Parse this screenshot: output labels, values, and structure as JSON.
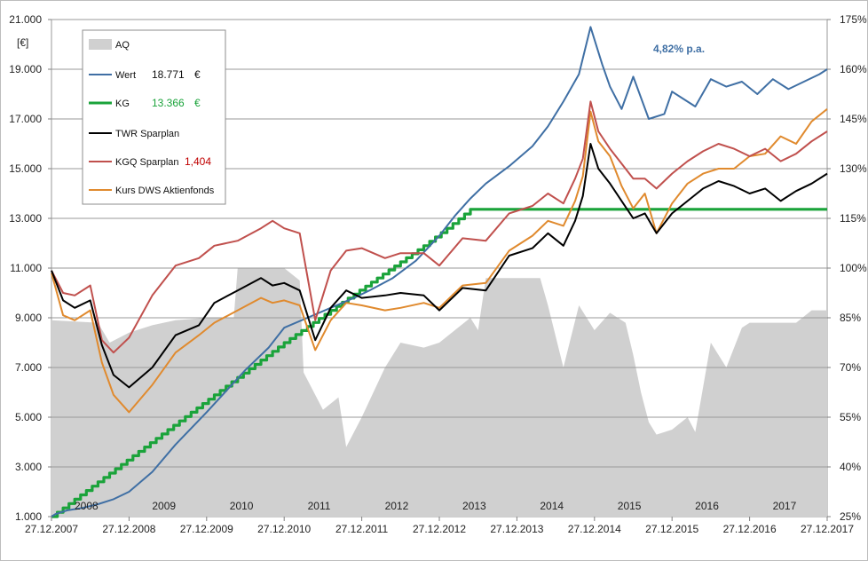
{
  "chart_data": {
    "type": "line",
    "y_unit_label": "[€]",
    "y_left_ticks": [
      "1.000",
      "3.000",
      "5.000",
      "7.000",
      "9.000",
      "11.000",
      "13.000",
      "15.000",
      "17.000",
      "19.000",
      "21.000"
    ],
    "y_left_values": [
      1000,
      3000,
      5000,
      7000,
      9000,
      11000,
      13000,
      15000,
      17000,
      19000,
      21000
    ],
    "ylim_left": [
      1000,
      21000
    ],
    "y_right_ticks": [
      "25%",
      "40%",
      "55%",
      "70%",
      "85%",
      "100%",
      "115%",
      "130%",
      "145%",
      "160%",
      "175%"
    ],
    "ylim_right": [
      25,
      175
    ],
    "x_date_ticks": [
      "27.12.2007",
      "27.12.2008",
      "27.12.2009",
      "27.12.2010",
      "27.12.2011",
      "27.12.2012",
      "27.12.2013",
      "27.12.2014",
      "27.12.2015",
      "27.12.2016",
      "27.12.2017"
    ],
    "year_labels": [
      "2008",
      "2009",
      "2010",
      "2011",
      "2012",
      "2013",
      "2014",
      "2015",
      "2016",
      "2017"
    ],
    "xlim": [
      2008.0,
      2018.0
    ],
    "annotation": "4,82%   p.a.",
    "legend": [
      {
        "key": "aq",
        "label": "AQ",
        "value": "",
        "unit": ""
      },
      {
        "key": "wert",
        "label": "Wert",
        "value": "18.771",
        "unit": "€"
      },
      {
        "key": "kg",
        "label": "KG",
        "value": "13.366",
        "unit": "€"
      },
      {
        "key": "twr",
        "label": "TWR Sparplan",
        "value": "",
        "unit": ""
      },
      {
        "key": "kgq",
        "label": "KGQ Sparplan",
        "value": "1,404",
        "unit": ""
      },
      {
        "key": "kurs",
        "label": "Kurs DWS Aktienfonds",
        "value": "",
        "unit": ""
      }
    ],
    "colors": {
      "aq": "#d0d0d0",
      "wert": "#3f6fa4",
      "kg": "#1aa33a",
      "twr": "#000000",
      "kgq": "#c0504d",
      "kurs": "#e08a2e"
    },
    "series": {
      "aq": {
        "x": [
          2008.0,
          2008.6,
          2008.75,
          2009.0,
          2009.3,
          2009.6,
          2010.0,
          2010.35,
          2010.4,
          2011.0,
          2011.2,
          2011.25,
          2011.5,
          2011.7,
          2011.8,
          2012.0,
          2012.3,
          2012.5,
          2012.8,
          2013.0,
          2013.2,
          2013.4,
          2013.5,
          2013.6,
          2014.0,
          2014.3,
          2014.4,
          2014.6,
          2014.8,
          2015.0,
          2015.2,
          2015.4,
          2015.5,
          2015.6,
          2015.7,
          2015.8,
          2016.0,
          2016.2,
          2016.3,
          2016.5,
          2016.7,
          2016.9,
          2017.0,
          2017.3,
          2017.6,
          2017.8,
          2018.0
        ],
        "y": [
          8900,
          8800,
          8000,
          8400,
          8700,
          8900,
          9000,
          9000,
          11000,
          11000,
          10500,
          6800,
          5300,
          5800,
          3800,
          5000,
          7000,
          8000,
          7800,
          8000,
          8500,
          9000,
          8500,
          10600,
          10600,
          10600,
          9500,
          7000,
          9500,
          8500,
          9200,
          8800,
          7500,
          6000,
          4800,
          4300,
          4500,
          5000,
          4400,
          8000,
          7000,
          8600,
          8800,
          8800,
          8800,
          9300,
          9300
        ]
      },
      "wert": {
        "x": [
          2008.0,
          2008.05,
          2008.2,
          2008.4,
          2008.6,
          2008.8,
          2009.0,
          2009.3,
          2009.6,
          2010.0,
          2010.5,
          2010.8,
          2011.0,
          2011.3,
          2011.6,
          2011.9,
          2012.1,
          2012.4,
          2012.7,
          2013.0,
          2013.2,
          2013.4,
          2013.6,
          2013.9,
          2014.2,
          2014.4,
          2014.6,
          2014.8,
          2014.95,
          2015.1,
          2015.2,
          2015.35,
          2015.5,
          2015.7,
          2015.9,
          2016.0,
          2016.15,
          2016.3,
          2016.5,
          2016.7,
          2016.9,
          2017.1,
          2017.3,
          2017.5,
          2017.7,
          2017.9,
          2018.0
        ],
        "y": [
          1000,
          1100,
          1250,
          1350,
          1500,
          1700,
          2000,
          2800,
          3900,
          5200,
          6900,
          7800,
          8600,
          9000,
          9400,
          9800,
          10100,
          10600,
          11300,
          12300,
          13100,
          13800,
          14400,
          15100,
          15900,
          16700,
          17700,
          18800,
          20700,
          19200,
          18300,
          17400,
          18700,
          17000,
          17200,
          18100,
          17800,
          17500,
          18600,
          18300,
          18500,
          18000,
          18600,
          18200,
          18500,
          18800,
          19000
        ]
      },
      "kg": {
        "x": [
          2008.0,
          2008.3,
          2008.6,
          2008.9,
          2009.2,
          2009.5,
          2009.8,
          2010.1,
          2010.4,
          2010.7,
          2011.0,
          2011.3,
          2011.6,
          2011.9,
          2012.2,
          2012.5,
          2012.8,
          2013.1,
          2013.4,
          2013.7,
          2014.0,
          2014.3,
          2014.6,
          2014.9,
          2015.2,
          2015.5,
          2015.8,
          2016.0,
          2016.5,
          2017.0,
          2017.5,
          2018.0
        ],
        "y": [
          1000,
          1700,
          2400,
          3100,
          3800,
          4500,
          5200,
          5900,
          6600,
          7300,
          8000,
          8650,
          9300,
          9950,
          10600,
          11250,
          11900,
          12600,
          13366,
          13366,
          13366,
          13366,
          13366,
          13366,
          13366,
          13366,
          13366,
          13366,
          13366,
          13366,
          13366,
          13366
        ]
      },
      "twr": {
        "x": [
          2008.0,
          2008.15,
          2008.3,
          2008.5,
          2008.65,
          2008.8,
          2009.0,
          2009.3,
          2009.6,
          2009.9,
          2010.1,
          2010.4,
          2010.7,
          2010.85,
          2011.0,
          2011.2,
          2011.4,
          2011.6,
          2011.8,
          2012.0,
          2012.3,
          2012.5,
          2012.8,
          2013.0,
          2013.3,
          2013.6,
          2013.9,
          2014.2,
          2014.4,
          2014.6,
          2014.75,
          2014.85,
          2014.95,
          2015.05,
          2015.2,
          2015.35,
          2015.5,
          2015.65,
          2015.8,
          2016.0,
          2016.2,
          2016.4,
          2016.6,
          2016.8,
          2017.0,
          2017.2,
          2017.4,
          2017.6,
          2017.8,
          2018.0
        ],
        "y": [
          10900,
          9700,
          9400,
          9700,
          7900,
          6700,
          6200,
          7000,
          8300,
          8700,
          9600,
          10100,
          10600,
          10300,
          10400,
          10100,
          8100,
          9400,
          10100,
          9800,
          9900,
          10000,
          9900,
          9300,
          10200,
          10100,
          11500,
          11800,
          12400,
          11900,
          12900,
          13900,
          16000,
          15000,
          14400,
          13700,
          13000,
          13200,
          12400,
          13200,
          13700,
          14200,
          14500,
          14300,
          14000,
          14200,
          13700,
          14100,
          14400,
          14800
        ]
      },
      "kgq": {
        "x": [
          2008.0,
          2008.15,
          2008.3,
          2008.5,
          2008.65,
          2008.8,
          2009.0,
          2009.3,
          2009.6,
          2009.9,
          2010.1,
          2010.4,
          2010.7,
          2010.85,
          2011.0,
          2011.2,
          2011.4,
          2011.6,
          2011.8,
          2012.0,
          2012.3,
          2012.5,
          2012.8,
          2013.0,
          2013.3,
          2013.6,
          2013.9,
          2014.2,
          2014.4,
          2014.6,
          2014.75,
          2014.85,
          2014.95,
          2015.05,
          2015.2,
          2015.35,
          2015.5,
          2015.65,
          2015.8,
          2016.0,
          2016.2,
          2016.4,
          2016.6,
          2016.8,
          2017.0,
          2017.2,
          2017.4,
          2017.6,
          2017.8,
          2018.0
        ],
        "y": [
          10900,
          10000,
          9900,
          10300,
          8100,
          7600,
          8200,
          9900,
          11100,
          11400,
          11900,
          12100,
          12600,
          12900,
          12600,
          12400,
          8900,
          10900,
          11700,
          11800,
          11400,
          11600,
          11600,
          11100,
          12200,
          12100,
          13200,
          13500,
          14000,
          13600,
          14600,
          15400,
          17700,
          16500,
          15800,
          15200,
          14600,
          14600,
          14200,
          14800,
          15300,
          15700,
          16000,
          15800,
          15500,
          15800,
          15300,
          15600,
          16100,
          16500
        ]
      },
      "kurs": {
        "x": [
          2008.0,
          2008.15,
          2008.3,
          2008.5,
          2008.65,
          2008.8,
          2009.0,
          2009.3,
          2009.6,
          2009.9,
          2010.1,
          2010.4,
          2010.7,
          2010.85,
          2011.0,
          2011.2,
          2011.4,
          2011.6,
          2011.8,
          2012.0,
          2012.3,
          2012.5,
          2012.8,
          2013.0,
          2013.3,
          2013.6,
          2013.9,
          2014.2,
          2014.4,
          2014.6,
          2014.75,
          2014.85,
          2014.95,
          2015.05,
          2015.2,
          2015.35,
          2015.5,
          2015.65,
          2015.8,
          2016.0,
          2016.2,
          2016.4,
          2016.6,
          2016.8,
          2017.0,
          2017.2,
          2017.4,
          2017.6,
          2017.8,
          2018.0
        ],
        "y": [
          10800,
          9100,
          8900,
          9300,
          7200,
          5900,
          5200,
          6300,
          7600,
          8300,
          8800,
          9300,
          9800,
          9600,
          9700,
          9500,
          7700,
          8900,
          9600,
          9500,
          9300,
          9400,
          9600,
          9400,
          10300,
          10400,
          11700,
          12300,
          12900,
          12700,
          13700,
          14700,
          17300,
          16100,
          15500,
          14300,
          13400,
          14000,
          12400,
          13600,
          14400,
          14800,
          15000,
          15000,
          15500,
          15600,
          16300,
          16000,
          16900,
          17400
        ]
      }
    }
  }
}
